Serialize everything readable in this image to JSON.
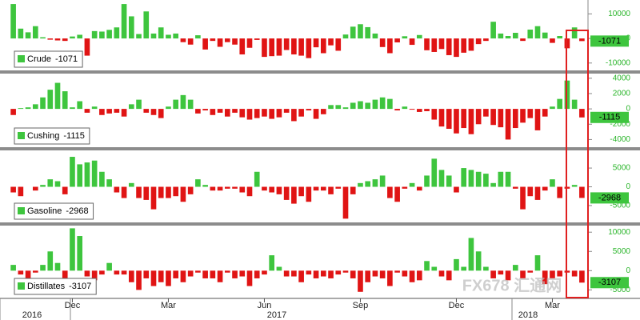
{
  "chart_data": [
    {
      "type": "bar",
      "name": "Crude",
      "positive_color": "#3ec53e",
      "negative_color": "#e01414",
      "ylim": [
        -13000,
        15000
      ],
      "yticks": [
        -10000,
        0,
        10000
      ],
      "values": [
        14000,
        4000,
        2500,
        5000,
        500,
        -500,
        -800,
        -1000,
        800,
        1500,
        -7000,
        3000,
        2800,
        3500,
        4500,
        14000,
        9000,
        1800,
        11000,
        2000,
        4500,
        1500,
        2000,
        -1500,
        -2500,
        1300,
        -4500,
        -1000,
        -3400,
        -1500,
        -2500,
        -6500,
        -3800,
        -600,
        -7500,
        -7200,
        -7000,
        -4700,
        -6500,
        -7000,
        -8000,
        -3600,
        -6000,
        -2800,
        -5000,
        1600,
        4800,
        5800,
        4600,
        2000,
        -3500,
        -6000,
        -1600,
        900,
        -2600,
        1400,
        -4800,
        -5500,
        -4300,
        -6800,
        -7500,
        -5800,
        -5000,
        -2300,
        -1000,
        6800,
        2000,
        1000,
        2300,
        -1000,
        3600,
        5000,
        2400,
        -1800,
        1000,
        -4000,
        4500,
        -1071
      ]
    },
    {
      "type": "bar",
      "name": "Cushing",
      "positive_color": "#3ec53e",
      "negative_color": "#e01414",
      "ylim": [
        -5000,
        4500
      ],
      "yticks": [
        -4000,
        -2000,
        0,
        2000,
        4000
      ],
      "values": [
        -800,
        100,
        200,
        600,
        1500,
        2500,
        3400,
        2300,
        200,
        1000,
        -500,
        300,
        -800,
        -600,
        -500,
        -1000,
        600,
        1200,
        -500,
        -800,
        -1200,
        300,
        1200,
        1800,
        1200,
        -600,
        -200,
        -800,
        -500,
        -1000,
        -500,
        -1100,
        -1400,
        -1200,
        -1000,
        -1300,
        -1100,
        -500,
        -1600,
        -1000,
        -200,
        -1300,
        -700,
        500,
        500,
        200,
        800,
        1000,
        800,
        1200,
        1500,
        1300,
        -200,
        300,
        -100,
        -400,
        -300,
        -1400,
        -2300,
        -2600,
        -3200,
        -2500,
        -3300,
        -2000,
        -1000,
        -2100,
        -2400,
        -4000,
        -2500,
        -1800,
        -1200,
        -2800,
        -1000,
        300,
        1300,
        3700,
        1200,
        -1115
      ]
    },
    {
      "type": "bar",
      "name": "Gasoline",
      "positive_color": "#3ec53e",
      "negative_color": "#e01414",
      "ylim": [
        -9500,
        9500
      ],
      "yticks": [
        -5000,
        0,
        5000
      ],
      "values": [
        -1500,
        -2500,
        0,
        -1000,
        500,
        2000,
        1500,
        -2000,
        8000,
        6000,
        6500,
        7000,
        4000,
        2000,
        -1500,
        -3000,
        1000,
        -3000,
        -3500,
        -6000,
        -3000,
        -3000,
        -2500,
        -4000,
        -2000,
        2000,
        500,
        -1000,
        -1000,
        -500,
        -500,
        -1500,
        -2500,
        4000,
        -1000,
        -1500,
        -2000,
        -3500,
        -4500,
        -2500,
        -4000,
        -1000,
        -1000,
        -2000,
        -500,
        -8500,
        -2000,
        1000,
        1500,
        2000,
        3000,
        -3000,
        -4000,
        -500,
        1000,
        -1000,
        3000,
        7500,
        4500,
        3000,
        -1500,
        5000,
        4500,
        4000,
        3500,
        1000,
        4000,
        4000,
        -500,
        -6000,
        -2500,
        -3500,
        -1000,
        2000,
        -3000,
        -500,
        500,
        -2968
      ]
    },
    {
      "type": "bar",
      "name": "Distillates",
      "positive_color": "#3ec53e",
      "negative_color": "#e01414",
      "ylim": [
        -7000,
        11500
      ],
      "yticks": [
        -5000,
        0,
        5000,
        10000
      ],
      "values": [
        1500,
        -1000,
        -2000,
        -500,
        1500,
        5000,
        2000,
        -2000,
        11000,
        9000,
        -1500,
        -2500,
        -1000,
        2000,
        -1000,
        -1000,
        -3000,
        -5000,
        -2000,
        -4000,
        -3000,
        -4000,
        -2000,
        -3000,
        -1500,
        -500,
        -2000,
        -2000,
        -3000,
        -500,
        -2000,
        -1500,
        -4000,
        -2000,
        -1000,
        4000,
        1000,
        -1500,
        -1500,
        -3000,
        -1000,
        -2000,
        -1500,
        -2000,
        -1000,
        -500,
        -2000,
        -5500,
        -3000,
        -1500,
        -2000,
        -4000,
        -500,
        -1500,
        -3000,
        -2500,
        2500,
        1000,
        -1500,
        -2500,
        3000,
        1000,
        8500,
        5000,
        1000,
        -2000,
        -1000,
        -2500,
        1500,
        -2000,
        -500,
        4000,
        -3500,
        -2000,
        -1500,
        -500,
        -1500,
        -3107
      ],
      "categories": [
        null,
        null,
        null,
        null,
        null,
        null,
        null,
        null,
        "Dec",
        null,
        null,
        null,
        null,
        null,
        null,
        null,
        null,
        null,
        null,
        null,
        null,
        "Mar",
        null,
        null,
        null,
        null,
        null,
        null,
        null,
        null,
        null,
        null,
        null,
        null,
        "Jun",
        null,
        null,
        null,
        null,
        null,
        null,
        null,
        null,
        null,
        null,
        null,
        null,
        "Sep",
        null,
        null,
        null,
        null,
        null,
        null,
        null,
        null,
        null,
        null,
        null,
        null,
        "Dec",
        null,
        null,
        null,
        null,
        null,
        null,
        null,
        null,
        null,
        null,
        null,
        null,
        "Mar",
        null,
        null,
        null,
        null
      ],
      "x_group_labels": [
        "2016",
        "2017",
        "2018"
      ]
    }
  ],
  "watermark": "FX678 汇通网"
}
